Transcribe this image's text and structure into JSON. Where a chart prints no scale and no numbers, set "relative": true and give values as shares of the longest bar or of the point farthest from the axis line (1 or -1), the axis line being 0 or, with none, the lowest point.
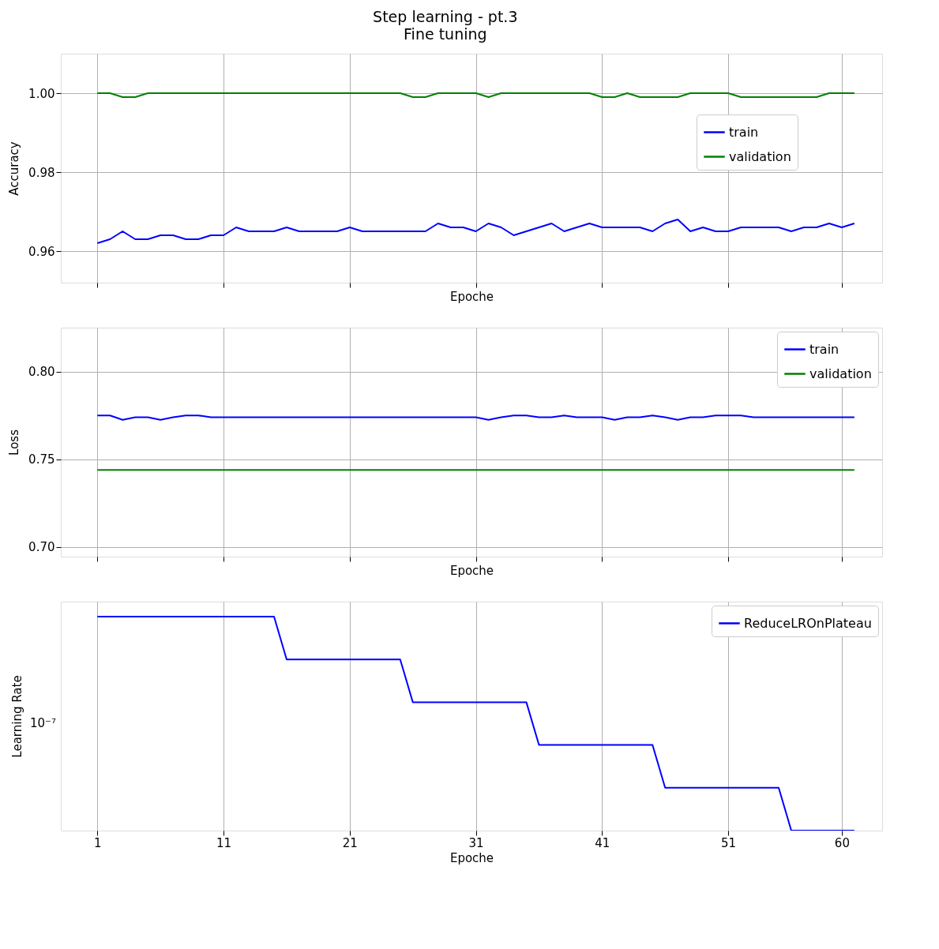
{
  "chart_data": [
    {
      "type": "line",
      "title": "Step learning - pt.3",
      "subtitle": "Fine tuning",
      "xlabel": "Epoche",
      "ylabel": "Accuracy",
      "x": [
        1,
        2,
        3,
        4,
        5,
        6,
        7,
        8,
        9,
        10,
        11,
        12,
        13,
        14,
        15,
        16,
        17,
        18,
        19,
        20,
        21,
        22,
        23,
        24,
        25,
        26,
        27,
        28,
        29,
        30,
        31,
        32,
        33,
        34,
        35,
        36,
        37,
        38,
        39,
        40,
        41,
        42,
        43,
        44,
        45,
        46,
        47,
        48,
        49,
        50,
        51,
        52,
        53,
        54,
        55,
        56,
        57,
        58,
        59,
        60,
        61
      ],
      "series": [
        {
          "name": "train",
          "color": "#0000ff",
          "values": [
            0.962,
            0.963,
            0.965,
            0.963,
            0.963,
            0.964,
            0.964,
            0.963,
            0.963,
            0.964,
            0.964,
            0.966,
            0.965,
            0.965,
            0.965,
            0.966,
            0.965,
            0.965,
            0.965,
            0.965,
            0.966,
            0.965,
            0.965,
            0.965,
            0.965,
            0.965,
            0.965,
            0.967,
            0.966,
            0.966,
            0.965,
            0.967,
            0.966,
            0.964,
            0.965,
            0.966,
            0.967,
            0.965,
            0.966,
            0.967,
            0.966,
            0.966,
            0.966,
            0.966,
            0.965,
            0.967,
            0.968,
            0.965,
            0.966,
            0.965,
            0.965,
            0.966,
            0.966,
            0.966,
            0.966,
            0.965,
            0.966,
            0.966,
            0.967,
            0.966,
            0.967
          ]
        },
        {
          "name": "validation",
          "color": "#008000",
          "values": [
            1.0,
            1.0,
            0.999,
            0.999,
            1.0,
            1.0,
            1.0,
            1.0,
            1.0,
            1.0,
            1.0,
            1.0,
            1.0,
            1.0,
            1.0,
            1.0,
            1.0,
            1.0,
            1.0,
            1.0,
            1.0,
            1.0,
            1.0,
            1.0,
            1.0,
            0.999,
            0.999,
            1.0,
            1.0,
            1.0,
            1.0,
            0.999,
            1.0,
            1.0,
            1.0,
            1.0,
            1.0,
            1.0,
            1.0,
            1.0,
            0.999,
            0.999,
            1.0,
            0.999,
            0.999,
            0.999,
            0.999,
            1.0,
            1.0,
            1.0,
            1.0,
            0.999,
            0.999,
            0.999,
            0.999,
            0.999,
            0.999,
            0.999,
            1.0,
            1.0,
            1.0
          ]
        }
      ],
      "xlim": [
        -1.9,
        63.2
      ],
      "xticks": [
        1,
        11,
        21,
        31,
        41,
        51,
        60
      ],
      "ylim": [
        0.952,
        1.01
      ],
      "yticks": [
        0.96,
        0.98,
        {
          "value": 1.0,
          "label": "1.00"
        }
      ],
      "grid": true,
      "legend": "right",
      "tick_labels": "y"
    },
    {
      "type": "line",
      "xlabel": "Epoche",
      "ylabel": "Loss",
      "x": [
        1,
        2,
        3,
        4,
        5,
        6,
        7,
        8,
        9,
        10,
        11,
        12,
        13,
        14,
        15,
        16,
        17,
        18,
        19,
        20,
        21,
        22,
        23,
        24,
        25,
        26,
        27,
        28,
        29,
        30,
        31,
        32,
        33,
        34,
        35,
        36,
        37,
        38,
        39,
        40,
        41,
        42,
        43,
        44,
        45,
        46,
        47,
        48,
        49,
        50,
        51,
        52,
        53,
        54,
        55,
        56,
        57,
        58,
        59,
        60,
        61
      ],
      "series": [
        {
          "name": "train",
          "color": "#0000ff",
          "values": [
            0.775,
            0.775,
            0.7725,
            0.774,
            0.774,
            0.7725,
            0.774,
            0.775,
            0.775,
            0.774,
            0.774,
            0.774,
            0.774,
            0.774,
            0.774,
            0.774,
            0.774,
            0.774,
            0.774,
            0.774,
            0.774,
            0.774,
            0.774,
            0.774,
            0.774,
            0.774,
            0.774,
            0.774,
            0.774,
            0.774,
            0.774,
            0.7725,
            0.774,
            0.775,
            0.775,
            0.774,
            0.774,
            0.775,
            0.774,
            0.774,
            0.774,
            0.7725,
            0.774,
            0.774,
            0.775,
            0.774,
            0.7725,
            0.774,
            0.774,
            0.775,
            0.775,
            0.775,
            0.774,
            0.774,
            0.774,
            0.774,
            0.774,
            0.774,
            0.774,
            0.774,
            0.774
          ]
        },
        {
          "name": "validation",
          "color": "#008000",
          "values": [
            0.744,
            0.744,
            0.744,
            0.744,
            0.744,
            0.744,
            0.744,
            0.744,
            0.744,
            0.744,
            0.744,
            0.744,
            0.744,
            0.744,
            0.744,
            0.744,
            0.744,
            0.744,
            0.744,
            0.744,
            0.744,
            0.744,
            0.744,
            0.744,
            0.744,
            0.744,
            0.744,
            0.744,
            0.744,
            0.744,
            0.744,
            0.744,
            0.744,
            0.744,
            0.744,
            0.744,
            0.744,
            0.744,
            0.744,
            0.744,
            0.744,
            0.744,
            0.744,
            0.744,
            0.744,
            0.744,
            0.744,
            0.744,
            0.744,
            0.744,
            0.744,
            0.744,
            0.744,
            0.744,
            0.744,
            0.744,
            0.744,
            0.744,
            0.744,
            0.744,
            0.744
          ]
        }
      ],
      "xlim": [
        -1.9,
        63.2
      ],
      "xticks": [
        1,
        11,
        21,
        31,
        41,
        51,
        60
      ],
      "ylim": [
        0.6946,
        0.825
      ],
      "yticks": [
        {
          "value": 0.7,
          "label": "0.70"
        },
        0.75,
        {
          "value": 0.8,
          "label": "0.80"
        }
      ],
      "grid": true,
      "legend": "top right",
      "tick_labels": "y"
    },
    {
      "type": "line",
      "xlabel": "Epoche",
      "ylabel": "Learning Rate",
      "x": [
        1,
        2,
        3,
        4,
        5,
        6,
        7,
        8,
        9,
        10,
        11,
        12,
        13,
        14,
        15,
        16,
        17,
        18,
        19,
        20,
        21,
        22,
        23,
        24,
        25,
        26,
        27,
        28,
        29,
        30,
        31,
        32,
        33,
        34,
        35,
        36,
        37,
        38,
        39,
        40,
        41,
        42,
        43,
        44,
        45,
        46,
        47,
        48,
        49,
        50,
        51,
        52,
        53,
        54,
        55,
        56,
        57,
        58,
        59,
        60,
        61
      ],
      "series": [
        {
          "name": "ReduceLROnPlateau",
          "color": "#0000ff",
          "values": [
            1,
            1,
            1,
            1,
            1,
            1,
            1,
            1,
            1,
            1,
            1,
            1,
            1,
            1,
            1,
            0.8,
            0.8,
            0.8,
            0.8,
            0.8,
            0.8,
            0.8,
            0.8,
            0.8,
            0.8,
            0.6,
            0.6,
            0.6,
            0.6,
            0.6,
            0.6,
            0.6,
            0.6,
            0.6,
            0.6,
            0.4,
            0.4,
            0.4,
            0.4,
            0.4,
            0.4,
            0.4,
            0.4,
            0.4,
            0.4,
            0.2,
            0.2,
            0.2,
            0.2,
            0.2,
            0.2,
            0.2,
            0.2,
            0.2,
            0.2,
            0,
            0,
            0,
            0,
            0,
            0
          ]
        }
      ],
      "relative": true,
      "annotations": [
        "10⁻⁷"
      ],
      "xlim": [
        -1.9,
        63.2
      ],
      "xticks": [
        1,
        11,
        21,
        31,
        41,
        51,
        60
      ],
      "grid": "x",
      "legend": "top right"
    }
  ]
}
